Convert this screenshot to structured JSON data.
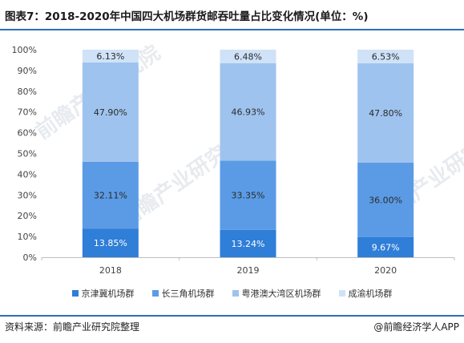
{
  "title": "图表7：2018-2020年中国四大机场群货邮吞吐量占比变化情况(单位：%)",
  "footer": {
    "source": "资料来源：前瞻产业研究院整理",
    "brand": "@前瞻经济学人APP"
  },
  "watermarks": [
    "前瞻产业研究院",
    "前瞻产业研究院",
    "前瞻产业研究院"
  ],
  "chart_data": {
    "type": "bar",
    "stacked": true,
    "categories": [
      "2018",
      "2019",
      "2020"
    ],
    "ylim": [
      0,
      100
    ],
    "yticks": [
      "0%",
      "10%",
      "20%",
      "30%",
      "40%",
      "50%",
      "60%",
      "70%",
      "80%",
      "90%",
      "100%"
    ],
    "series": [
      {
        "name": "京津冀机场群",
        "color": "#2f7ed8",
        "values": [
          13.85,
          13.24,
          9.67
        ],
        "labels": [
          "13.85%",
          "13.24%",
          "9.67%"
        ],
        "label_color": "#ffffff"
      },
      {
        "name": "长三角机场群",
        "color": "#5b9be6",
        "values": [
          32.11,
          33.35,
          36.0
        ],
        "labels": [
          "32.11%",
          "33.35%",
          "36.00%"
        ],
        "label_color": "#2b2b2b"
      },
      {
        "name": "粤港澳大湾区机场群",
        "color": "#9fc3ef",
        "values": [
          47.9,
          46.93,
          47.8
        ],
        "labels": [
          "47.90%",
          "46.93%",
          "47.80%"
        ],
        "label_color": "#2b2b2b"
      },
      {
        "name": "成渝机场群",
        "color": "#cfe2f8",
        "values": [
          6.13,
          6.48,
          6.53
        ],
        "labels": [
          "6.13%",
          "6.48%",
          "6.53%"
        ],
        "label_color": "#2b2b2b"
      }
    ]
  }
}
